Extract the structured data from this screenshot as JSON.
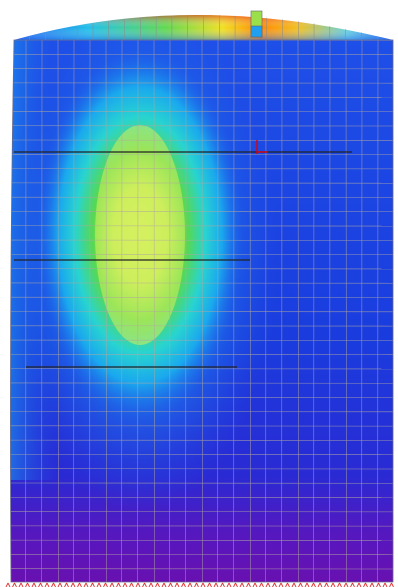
{
  "view": {
    "kind": "fea-contour-plot",
    "background": "#ffffff",
    "mesh_color": "#b0a8a0",
    "colormap": [
      "#6a0dad",
      "#1a1ad8",
      "#1e5ef0",
      "#19b4ee",
      "#25e0e0",
      "#3ad45a",
      "#b0e040",
      "#d8f060",
      "#ffe000",
      "#ff8800",
      "#e02020"
    ],
    "section_line_color": "#222222",
    "marker_color": "#e00000",
    "support_symbol_color": "#e00000"
  }
}
